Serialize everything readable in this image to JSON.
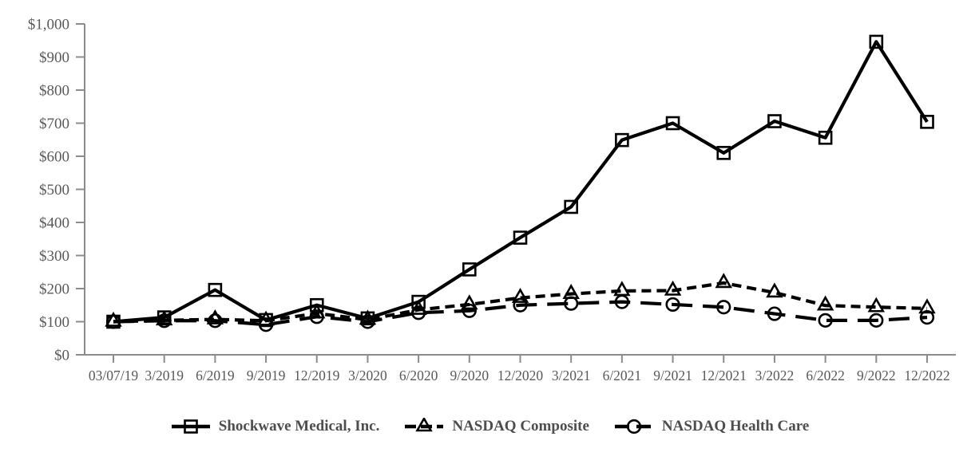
{
  "colors": {
    "series_line": "#000000",
    "axis_line": "#8c8c8c",
    "tick_label": "#595959",
    "legend_text": "#4d4d4d",
    "background": "#ffffff",
    "marker_fill": "none"
  },
  "chart_data": {
    "type": "line",
    "title": "",
    "xlabel": "",
    "ylabel": "",
    "ylim": [
      0,
      1000
    ],
    "y_tick_step": 100,
    "grid": false,
    "legend_position": "bottom-center",
    "y_tick_labels": [
      "$0",
      "$100",
      "$200",
      "$300",
      "$400",
      "$500",
      "$600",
      "$700",
      "$800",
      "$900",
      "$1,000"
    ],
    "y_tick_values": [
      0,
      100,
      200,
      300,
      400,
      500,
      600,
      700,
      800,
      900,
      1000
    ],
    "x_labels": [
      "03/07/19",
      "3/2019",
      "6/2019",
      "9/2019",
      "12/2019",
      "3/2020",
      "6/2020",
      "9/2020",
      "12/2020",
      "3/2021",
      "6/2021",
      "9/2021",
      "12/2021",
      "3/2022",
      "6/2022",
      "9/2022",
      "12/2022"
    ],
    "series": [
      {
        "name": "Shockwave Medical, Inc.",
        "marker": "square",
        "line_style": "solid",
        "values": [
          100,
          113,
          196,
          105,
          150,
          110,
          160,
          258,
          354,
          447,
          649,
          700,
          610,
          706,
          656,
          946,
          704
        ]
      },
      {
        "name": "NASDAQ Composite",
        "marker": "triangle",
        "line_style": "dashed",
        "values": [
          100,
          104,
          107,
          103,
          125,
          106,
          136,
          152,
          172,
          184,
          193,
          194,
          217,
          188,
          149,
          144,
          140
        ]
      },
      {
        "name": "NASDAQ Health Care",
        "marker": "circle",
        "line_style": "long-dash",
        "values": [
          100,
          103,
          103,
          91,
          115,
          100,
          127,
          133,
          150,
          155,
          160,
          152,
          144,
          124,
          104,
          104,
          113
        ]
      }
    ]
  }
}
